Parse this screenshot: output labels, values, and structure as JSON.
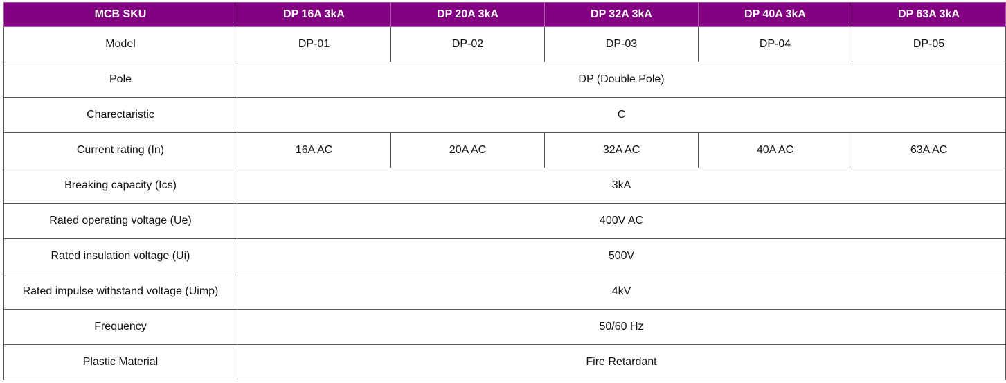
{
  "table": {
    "header": [
      "MCB SKU",
      "DP 16A 3kA",
      "DP 20A 3kA",
      "DP 32A 3kA",
      "DP 40A 3kA",
      "DP 63A 3kA"
    ],
    "header_bg_color": "#840083",
    "header_text_color": "#ffffff",
    "rows": [
      {
        "label": "Model",
        "values": [
          "DP-01",
          "DP-02",
          "DP-03",
          "DP-04",
          "DP-05"
        ]
      },
      {
        "label": "Pole",
        "values": [
          "DP (Double Pole)"
        ]
      },
      {
        "label": "Charectaristic",
        "values": [
          "C"
        ]
      },
      {
        "label": "Current rating (In)",
        "values": [
          "16A AC",
          "20A AC",
          "32A AC",
          "40A AC",
          "63A AC"
        ]
      },
      {
        "label": "Breaking capacity (Ics)",
        "values": [
          "3kA"
        ]
      },
      {
        "label": "Rated operating voltage (Ue)",
        "values": [
          "400V AC"
        ]
      },
      {
        "label": "Rated insulation voltage (Ui)",
        "values": [
          "500V"
        ]
      },
      {
        "label": "Rated impulse withstand voltage (Uimp)",
        "values": [
          "4kV"
        ]
      },
      {
        "label": "Frequency",
        "values": [
          "50/60 Hz"
        ]
      },
      {
        "label": "Plastic Material",
        "values": [
          "Fire Retardant"
        ]
      }
    ]
  }
}
